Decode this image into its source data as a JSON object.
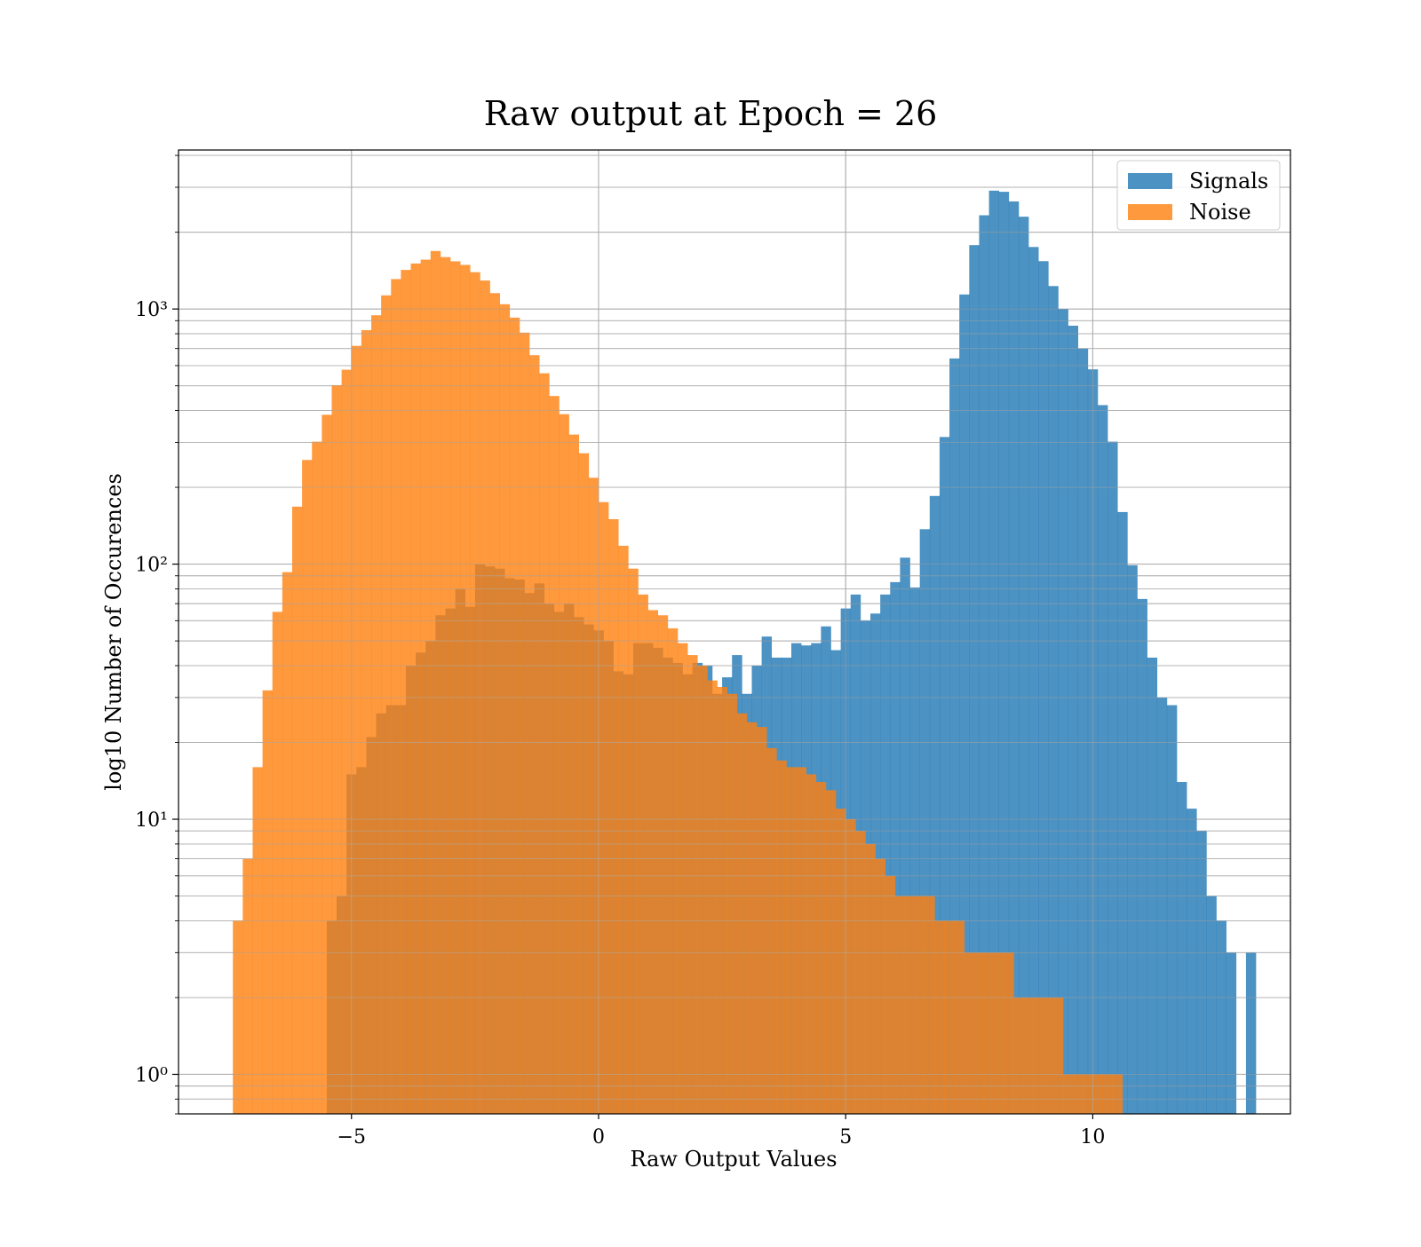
{
  "chart_data": {
    "type": "bar",
    "title": "Raw output at Epoch = 26",
    "xlabel": "Raw Output Values",
    "ylabel": "log10 Number of Occurences",
    "x_scale": "linear",
    "y_scale": "log",
    "xlim": [
      -8.5,
      14.0
    ],
    "ylim": [
      0.7,
      4200
    ],
    "x_ticks": [
      -5,
      0,
      5,
      10
    ],
    "x_tick_labels": [
      "−5",
      "0",
      "5",
      "10"
    ],
    "y_ticks": [
      1,
      10,
      100,
      1000
    ],
    "y_tick_labels": [
      "10⁰",
      "10¹",
      "10²",
      "10³"
    ],
    "grid": true,
    "grid_minor": true,
    "legend_position": "top-right",
    "legend": [
      "Signals",
      "Noise"
    ],
    "colors": {
      "signals": "#1f77b4",
      "noise": "#ff7f0e",
      "bar_alpha": 0.8
    },
    "series": [
      {
        "name": "Signals",
        "bin_start": -5.5,
        "bin_width": 0.2,
        "counts": [
          4,
          5,
          15,
          16,
          21,
          26,
          28,
          28,
          40,
          45,
          50,
          63,
          67,
          80,
          68,
          100,
          98,
          96,
          88,
          87,
          77,
          84,
          70,
          65,
          70,
          62,
          58,
          55,
          50,
          38,
          37,
          49,
          49,
          47,
          43,
          41,
          37,
          41,
          40,
          31,
          36,
          44,
          31,
          40,
          52,
          43,
          43,
          49,
          48,
          49,
          57,
          46,
          67,
          76,
          60,
          64,
          76,
          85,
          106,
          81,
          137,
          185,
          315,
          640,
          1140,
          1780,
          2330,
          2910,
          2880,
          2640,
          2300,
          1750,
          1540,
          1230,
          1000,
          860,
          700,
          580,
          420,
          302,
          160,
          99,
          73,
          43,
          30,
          28,
          14,
          11,
          9,
          5,
          4,
          3,
          0,
          3
        ]
      },
      {
        "name": "Noise",
        "bin_start": -7.4,
        "bin_width": 0.2,
        "counts": [
          4,
          7,
          16,
          32,
          65,
          93,
          168,
          256,
          302,
          385,
          503,
          578,
          717,
          826,
          945,
          1131,
          1310,
          1423,
          1508,
          1561,
          1688,
          1597,
          1538,
          1489,
          1394,
          1293,
          1154,
          1044,
          925,
          808,
          659,
          560,
          456,
          387,
          322,
          272,
          218,
          175,
          150,
          118,
          96,
          76,
          66,
          63,
          56,
          49,
          44,
          40,
          35,
          33,
          31,
          26,
          24,
          23,
          19,
          17,
          16,
          16,
          15,
          14,
          13,
          11,
          10,
          9,
          8,
          7,
          6,
          5,
          5,
          5,
          5,
          4,
          4,
          4,
          3,
          3,
          3,
          3,
          3,
          2,
          2,
          2,
          2,
          2,
          1,
          1,
          1,
          1,
          1,
          1,
          0,
          0,
          0
        ]
      }
    ]
  }
}
